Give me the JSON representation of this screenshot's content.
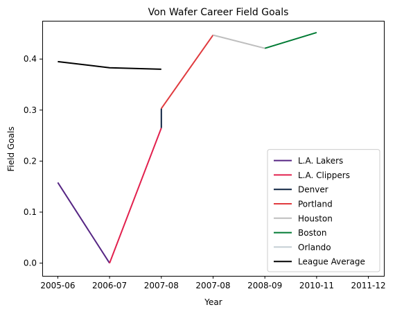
{
  "chart_data": {
    "type": "line",
    "title": "Von Wafer Career Field Goals",
    "xlabel": "Year",
    "ylabel": "Field Goals",
    "categories": [
      "2005-06",
      "2006-07",
      "2007-08",
      "2007-08",
      "2008-09",
      "2010-11",
      "2011-12"
    ],
    "xlim": [
      -0.3,
      6.3
    ],
    "ylim": [
      -0.025,
      0.475
    ],
    "yticks": [
      0.0,
      0.1,
      0.2,
      0.3,
      0.4
    ],
    "ytick_labels": [
      "0.0",
      "0.1",
      "0.2",
      "0.3",
      "0.4"
    ],
    "grid": false,
    "legend": "lower right",
    "series": [
      {
        "name": "L.A. Lakers",
        "color": "#552583",
        "points": [
          [
            0,
            0.158
          ],
          [
            1,
            0.0
          ]
        ]
      },
      {
        "name": "L.A. Clippers",
        "color": "#E2204D",
        "points": [
          [
            1,
            0.0
          ],
          [
            2,
            0.265
          ]
        ]
      },
      {
        "name": "Denver",
        "color": "#0D2240",
        "points": [
          [
            2,
            0.265
          ],
          [
            2,
            0.303
          ]
        ]
      },
      {
        "name": "Portland",
        "color": "#E03A3E",
        "points": [
          [
            2,
            0.303
          ],
          [
            3,
            0.447
          ]
        ]
      },
      {
        "name": "Houston",
        "color": "#BEBEBE",
        "points": [
          [
            3,
            0.447
          ],
          [
            4,
            0.421
          ]
        ]
      },
      {
        "name": "Boston",
        "color": "#007A33",
        "points": [
          [
            4,
            0.421
          ],
          [
            5,
            0.452
          ]
        ]
      },
      {
        "name": "Orlando",
        "color": "#C4CED4",
        "points": []
      },
      {
        "name": "League Average",
        "color": "#000000",
        "points": [
          [
            0,
            0.395
          ],
          [
            1,
            0.383
          ],
          [
            2,
            0.38
          ]
        ]
      }
    ]
  }
}
